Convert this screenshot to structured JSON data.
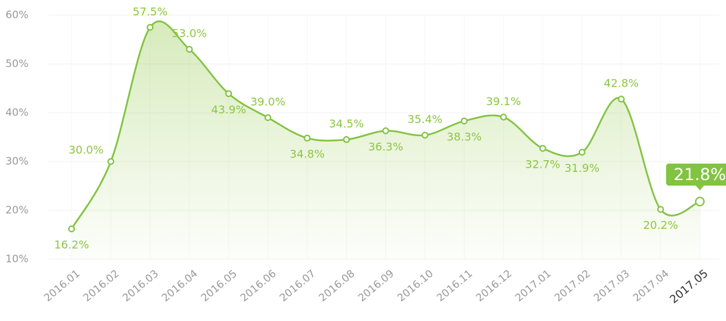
{
  "chart_data": {
    "type": "line",
    "categories": [
      "2016.01",
      "2016.02",
      "2016.03",
      "2016.04",
      "2016.05",
      "2016.06",
      "2016.07",
      "2016.08",
      "2016.09",
      "2016.10",
      "2016.11",
      "2016.12",
      "2017.01",
      "2017.02",
      "2017.03",
      "2017.04",
      "2017.05"
    ],
    "series": [
      {
        "color": "#82c341",
        "values": [
          16.2,
          30.0,
          57.5,
          53.0,
          43.9,
          39.0,
          34.8,
          34.5,
          36.3,
          35.4,
          38.3,
          39.1,
          32.7,
          31.9,
          42.8,
          20.2,
          21.8
        ],
        "value_labels": [
          "16.2%",
          "30.0%",
          "57.5%",
          "53.0%",
          "43.9%",
          "39.0%",
          "34.8%",
          "34.5%",
          "36.3%",
          "35.4%",
          "38.3%",
          "39.1%",
          "32.7%",
          "31.9%",
          "42.8%",
          "20.2%",
          "21.8%"
        ]
      }
    ],
    "ylim": [
      10,
      60
    ],
    "yticks": [
      {
        "value": 10,
        "label": "10%"
      },
      {
        "value": 20,
        "label": "20%"
      },
      {
        "value": 30,
        "label": "30%"
      },
      {
        "value": 40,
        "label": "40%"
      },
      {
        "value": 50,
        "label": "50%"
      },
      {
        "value": 60,
        "label": "60%"
      }
    ],
    "grid": true
  }
}
